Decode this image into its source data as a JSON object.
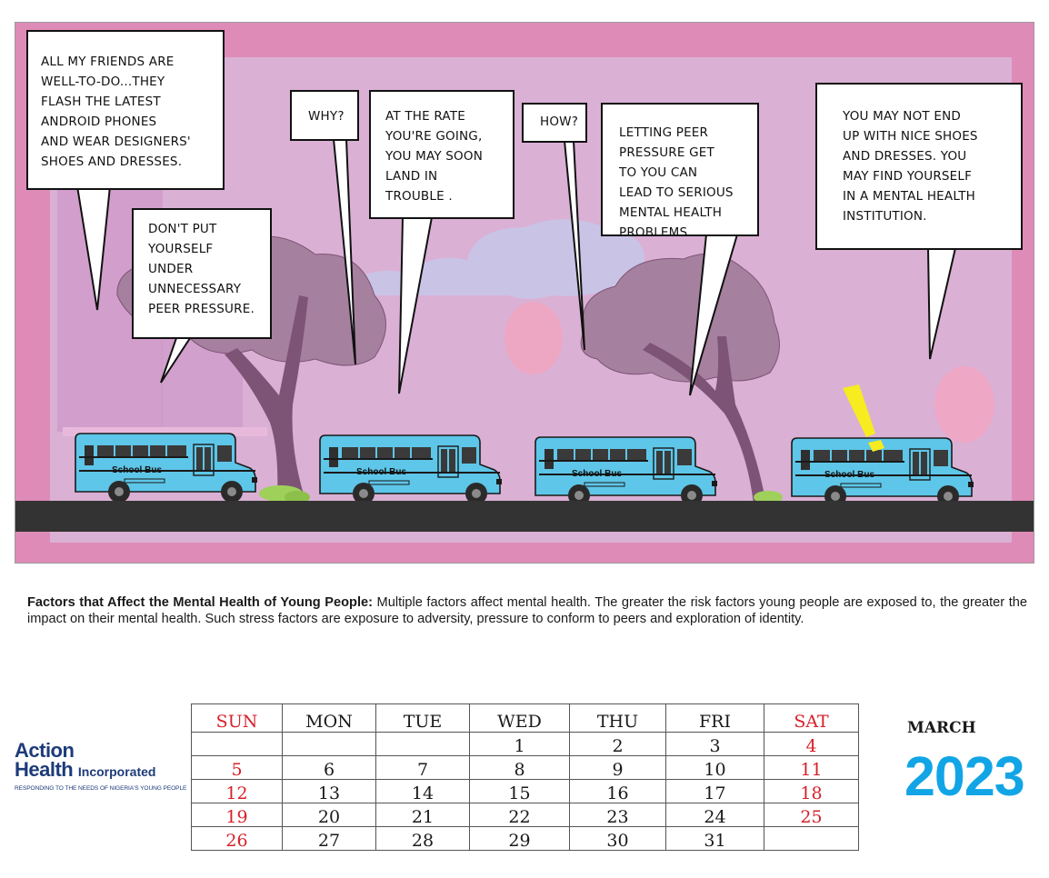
{
  "comic": {
    "bubbles": [
      "ALL MY FRIENDS ARE\nWELL-TO-DO...THEY\nFLASH THE LATEST\nANDROID PHONES\nAND WEAR DESIGNERS'\nSHOES AND DRESSES.",
      "DON'T PUT\nYOURSELF\nUNDER\nUNNECESSARY\nPEER PRESSURE.",
      "WHY?",
      "AT THE RATE\nYOU'RE GOING,\nYOU MAY SOON\nLAND IN\nTROUBLE .",
      "HOW?",
      "LETTING PEER\nPRESSURE GET\nTO YOU CAN\nLEAD TO SERIOUS\nMENTAL HEALTH\nPROBLEMS. .",
      "YOU  MAY NOT END\nUP WITH NICE SHOES\nAND DRESSES. YOU\nMAY FIND YOURSELF\nIN A MENTAL HEALTH\nINSTITUTION."
    ],
    "bus_label": "School Bus",
    "exclamation": "!"
  },
  "caption": {
    "heading": "Factors that Affect the Mental Health of Young People:",
    "body": " Multiple factors affect mental health. The greater the risk factors young people are exposed to, the greater the impact on their mental health. Such stress factors are exposure to adversity, pressure to conform to peers and exploration of identity."
  },
  "logo": {
    "line1": "Action",
    "line2": "Health",
    "line2_suffix": "Incorporated",
    "tagline": "RESPONDING TO THE NEEDS OF NIGERIA'S YOUNG PEOPLE"
  },
  "calendar": {
    "month": "MARCH",
    "year": "2023",
    "days": [
      "SUN",
      "MON",
      "TUE",
      "WED",
      "THU",
      "FRI",
      "SAT"
    ],
    "weeks": [
      [
        "",
        "",
        "",
        "1",
        "2",
        "3",
        "4"
      ],
      [
        "5",
        "6",
        "7",
        "8",
        "9",
        "10",
        "11"
      ],
      [
        "12",
        "13",
        "14",
        "15",
        "16",
        "17",
        "18"
      ],
      [
        "19",
        "20",
        "21",
        "22",
        "23",
        "24",
        "25"
      ],
      [
        "26",
        "27",
        "28",
        "29",
        "30",
        "31",
        ""
      ]
    ],
    "weekend_color": "#d6212b"
  },
  "colors": {
    "panel_border": "#de8bb8",
    "panel_inner": "#dab0d4",
    "bus": "#5ec6e8",
    "tree": "#a6809f",
    "trunk": "#7e5476",
    "road": "#333333",
    "year": "#12a5e6"
  }
}
